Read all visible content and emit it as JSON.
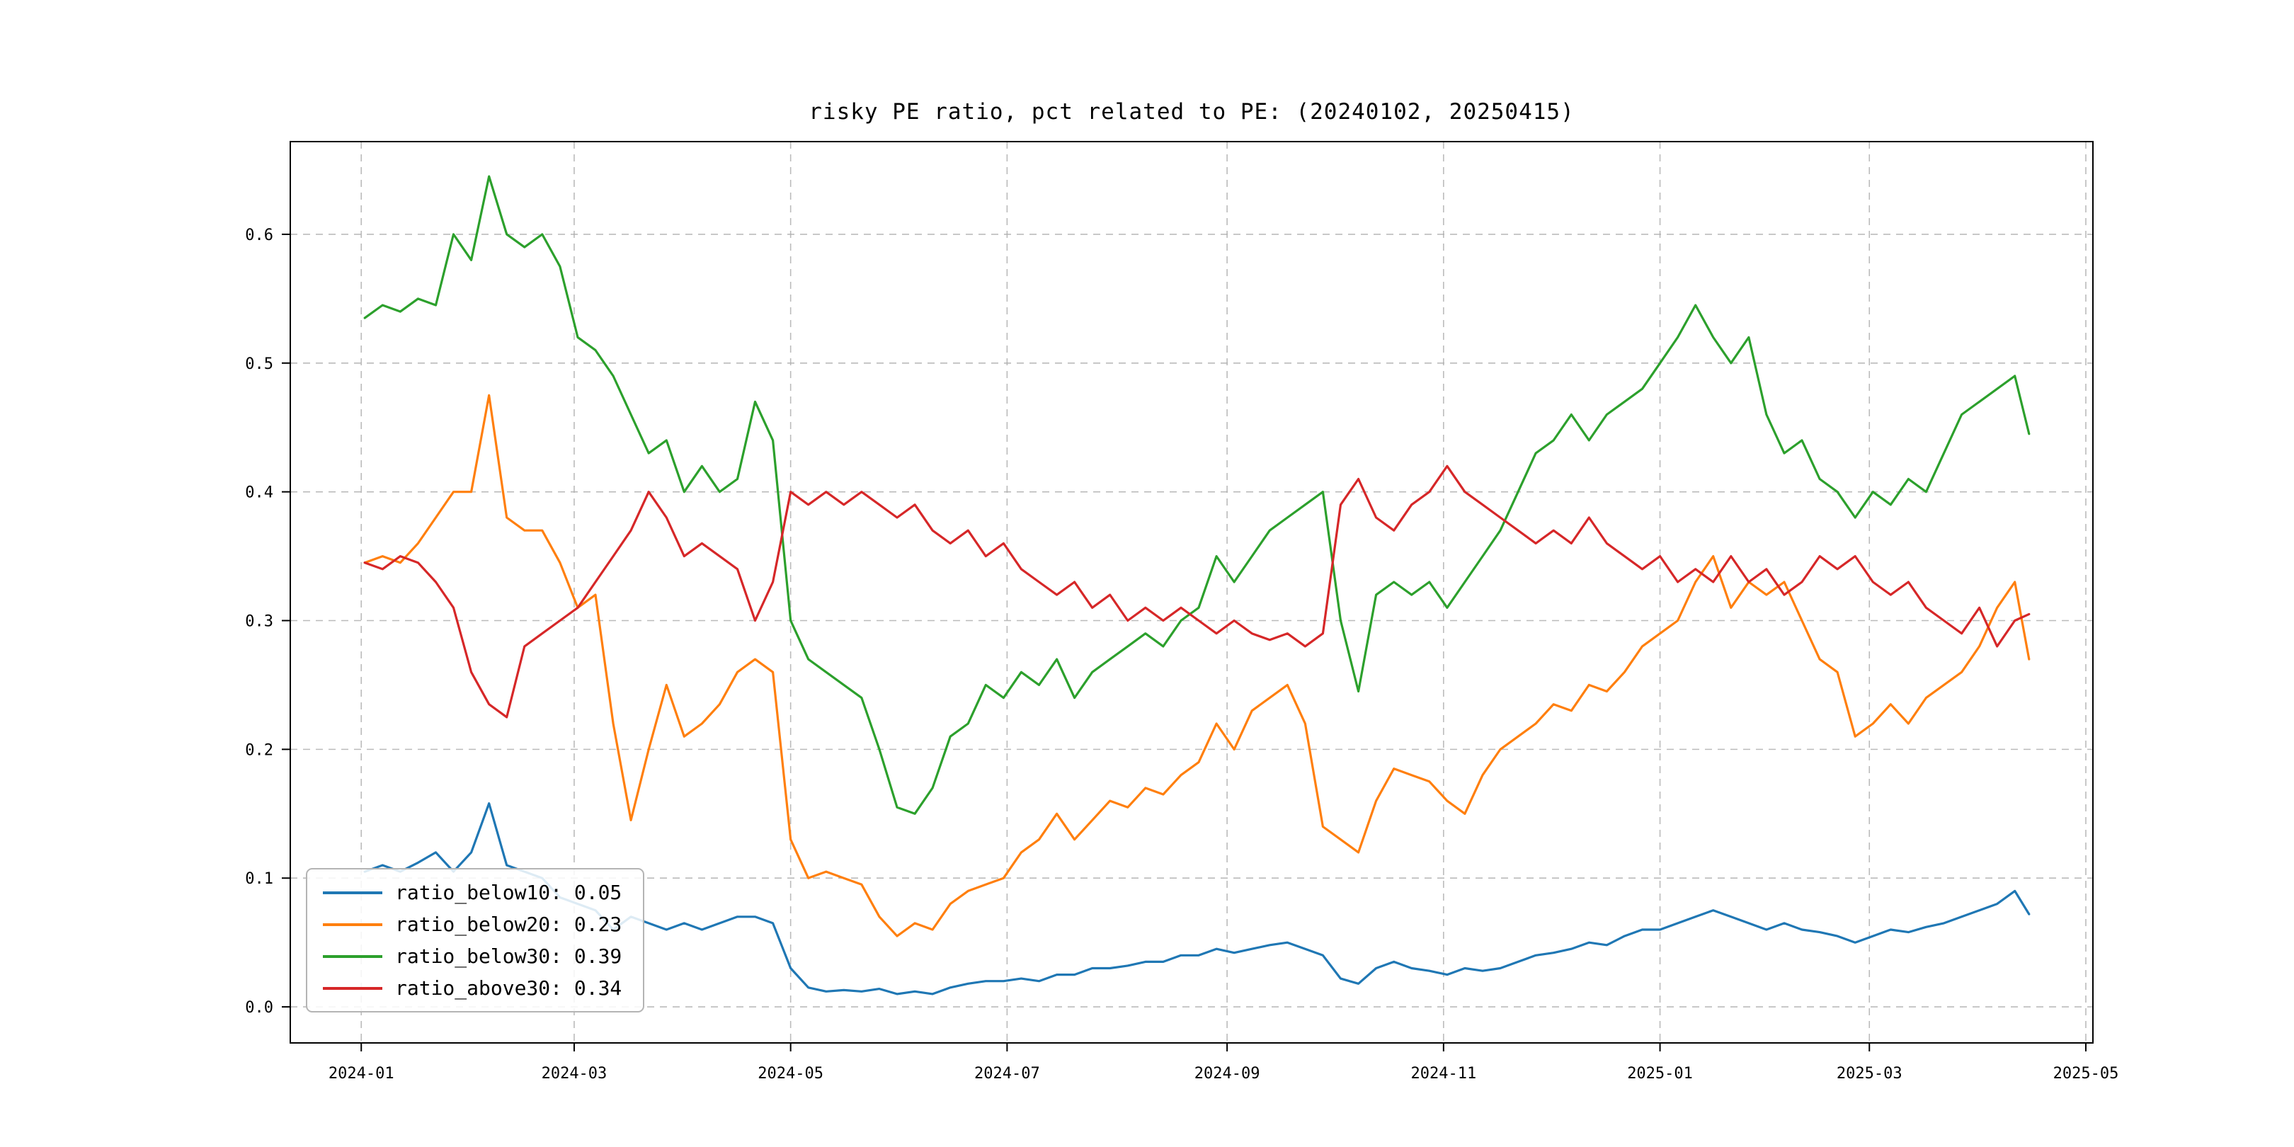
{
  "chart_data": {
    "type": "line",
    "title": "risky PE ratio, pct related to PE: (20240102, 20250415)",
    "xlabel": "",
    "ylabel": "",
    "grid": true,
    "grid_style": "dashed",
    "legend_position": "lower left",
    "xlim": [
      "2023-12-12",
      "2025-05-03"
    ],
    "ylim": [
      -0.028,
      0.672
    ],
    "x_ticks": [
      "2024-01",
      "2024-03",
      "2024-05",
      "2024-07",
      "2024-09",
      "2024-11",
      "2025-01",
      "2025-03",
      "2025-05"
    ],
    "y_ticks": [
      0.0,
      0.1,
      0.2,
      0.3,
      0.4,
      0.5,
      0.6
    ],
    "x": [
      "2024-01-02",
      "2024-01-07",
      "2024-01-12",
      "2024-01-17",
      "2024-01-22",
      "2024-01-27",
      "2024-02-01",
      "2024-02-06",
      "2024-02-11",
      "2024-02-16",
      "2024-02-21",
      "2024-02-26",
      "2024-03-02",
      "2024-03-07",
      "2024-03-12",
      "2024-03-17",
      "2024-03-22",
      "2024-03-27",
      "2024-04-01",
      "2024-04-06",
      "2024-04-11",
      "2024-04-16",
      "2024-04-21",
      "2024-04-26",
      "2024-05-01",
      "2024-05-06",
      "2024-05-11",
      "2024-05-16",
      "2024-05-21",
      "2024-05-26",
      "2024-05-31",
      "2024-06-05",
      "2024-06-10",
      "2024-06-15",
      "2024-06-20",
      "2024-06-25",
      "2024-06-30",
      "2024-07-05",
      "2024-07-10",
      "2024-07-15",
      "2024-07-20",
      "2024-07-25",
      "2024-07-30",
      "2024-08-04",
      "2024-08-09",
      "2024-08-14",
      "2024-08-19",
      "2024-08-24",
      "2024-08-29",
      "2024-09-03",
      "2024-09-08",
      "2024-09-13",
      "2024-09-18",
      "2024-09-23",
      "2024-09-28",
      "2024-10-03",
      "2024-10-08",
      "2024-10-13",
      "2024-10-18",
      "2024-10-23",
      "2024-10-28",
      "2024-11-02",
      "2024-11-07",
      "2024-11-12",
      "2024-11-17",
      "2024-11-22",
      "2024-11-27",
      "2024-12-02",
      "2024-12-07",
      "2024-12-12",
      "2024-12-17",
      "2024-12-22",
      "2024-12-27",
      "2025-01-01",
      "2025-01-06",
      "2025-01-11",
      "2025-01-16",
      "2025-01-21",
      "2025-01-26",
      "2025-01-31",
      "2025-02-05",
      "2025-02-10",
      "2025-02-15",
      "2025-02-20",
      "2025-02-25",
      "2025-03-02",
      "2025-03-07",
      "2025-03-12",
      "2025-03-17",
      "2025-03-22",
      "2025-03-27",
      "2025-04-01",
      "2025-04-06",
      "2025-04-11",
      "2025-04-15"
    ],
    "series": [
      {
        "name": "ratio_below10",
        "legend_label": "ratio_below10: 0.05",
        "color": "#1f77b4",
        "values": [
          0.105,
          0.11,
          0.105,
          0.112,
          0.12,
          0.105,
          0.12,
          0.158,
          0.11,
          0.105,
          0.1,
          0.085,
          0.08,
          0.075,
          0.06,
          0.07,
          0.065,
          0.06,
          0.065,
          0.06,
          0.065,
          0.07,
          0.07,
          0.065,
          0.03,
          0.015,
          0.012,
          0.013,
          0.012,
          0.014,
          0.01,
          0.012,
          0.01,
          0.015,
          0.018,
          0.02,
          0.02,
          0.022,
          0.02,
          0.025,
          0.025,
          0.03,
          0.03,
          0.032,
          0.035,
          0.035,
          0.04,
          0.04,
          0.045,
          0.042,
          0.045,
          0.048,
          0.05,
          0.045,
          0.04,
          0.022,
          0.018,
          0.03,
          0.035,
          0.03,
          0.028,
          0.025,
          0.03,
          0.028,
          0.03,
          0.035,
          0.04,
          0.042,
          0.045,
          0.05,
          0.048,
          0.055,
          0.06,
          0.06,
          0.065,
          0.07,
          0.075,
          0.07,
          0.065,
          0.06,
          0.065,
          0.06,
          0.058,
          0.055,
          0.05,
          0.055,
          0.06,
          0.058,
          0.062,
          0.065,
          0.07,
          0.075,
          0.08,
          0.09,
          0.072
        ]
      },
      {
        "name": "ratio_below20",
        "legend_label": "ratio_below20: 0.23",
        "color": "#ff7f0e",
        "values": [
          0.345,
          0.35,
          0.345,
          0.36,
          0.38,
          0.4,
          0.4,
          0.475,
          0.38,
          0.37,
          0.37,
          0.345,
          0.31,
          0.32,
          0.22,
          0.145,
          0.2,
          0.25,
          0.21,
          0.22,
          0.235,
          0.26,
          0.27,
          0.26,
          0.13,
          0.1,
          0.105,
          0.1,
          0.095,
          0.07,
          0.055,
          0.065,
          0.06,
          0.08,
          0.09,
          0.095,
          0.1,
          0.12,
          0.13,
          0.15,
          0.13,
          0.145,
          0.16,
          0.155,
          0.17,
          0.165,
          0.18,
          0.19,
          0.22,
          0.2,
          0.23,
          0.24,
          0.25,
          0.22,
          0.14,
          0.13,
          0.12,
          0.16,
          0.185,
          0.18,
          0.175,
          0.16,
          0.15,
          0.18,
          0.2,
          0.21,
          0.22,
          0.235,
          0.23,
          0.25,
          0.245,
          0.26,
          0.28,
          0.29,
          0.3,
          0.33,
          0.35,
          0.31,
          0.33,
          0.32,
          0.33,
          0.3,
          0.27,
          0.26,
          0.21,
          0.22,
          0.235,
          0.22,
          0.24,
          0.25,
          0.26,
          0.28,
          0.31,
          0.33,
          0.27
        ]
      },
      {
        "name": "ratio_below30",
        "legend_label": "ratio_below30: 0.39",
        "color": "#2ca02c",
        "values": [
          0.535,
          0.545,
          0.54,
          0.55,
          0.545,
          0.6,
          0.58,
          0.645,
          0.6,
          0.59,
          0.6,
          0.575,
          0.52,
          0.51,
          0.49,
          0.46,
          0.43,
          0.44,
          0.4,
          0.42,
          0.4,
          0.41,
          0.47,
          0.44,
          0.3,
          0.27,
          0.26,
          0.25,
          0.24,
          0.2,
          0.155,
          0.15,
          0.17,
          0.21,
          0.22,
          0.25,
          0.24,
          0.26,
          0.25,
          0.27,
          0.24,
          0.26,
          0.27,
          0.28,
          0.29,
          0.28,
          0.3,
          0.31,
          0.35,
          0.33,
          0.35,
          0.37,
          0.38,
          0.39,
          0.4,
          0.3,
          0.245,
          0.32,
          0.33,
          0.32,
          0.33,
          0.31,
          0.33,
          0.35,
          0.37,
          0.4,
          0.43,
          0.44,
          0.46,
          0.44,
          0.46,
          0.47,
          0.48,
          0.5,
          0.52,
          0.545,
          0.52,
          0.5,
          0.52,
          0.46,
          0.43,
          0.44,
          0.41,
          0.4,
          0.38,
          0.4,
          0.39,
          0.41,
          0.4,
          0.43,
          0.46,
          0.47,
          0.48,
          0.49,
          0.445
        ]
      },
      {
        "name": "ratio_above30",
        "legend_label": "ratio_above30: 0.34",
        "color": "#d62728",
        "values": [
          0.345,
          0.34,
          0.35,
          0.345,
          0.33,
          0.31,
          0.26,
          0.235,
          0.225,
          0.28,
          0.29,
          0.3,
          0.31,
          0.33,
          0.35,
          0.37,
          0.4,
          0.38,
          0.35,
          0.36,
          0.35,
          0.34,
          0.3,
          0.33,
          0.4,
          0.39,
          0.4,
          0.39,
          0.4,
          0.39,
          0.38,
          0.39,
          0.37,
          0.36,
          0.37,
          0.35,
          0.36,
          0.34,
          0.33,
          0.32,
          0.33,
          0.31,
          0.32,
          0.3,
          0.31,
          0.3,
          0.31,
          0.3,
          0.29,
          0.3,
          0.29,
          0.285,
          0.29,
          0.28,
          0.29,
          0.39,
          0.41,
          0.38,
          0.37,
          0.39,
          0.4,
          0.42,
          0.4,
          0.39,
          0.38,
          0.37,
          0.36,
          0.37,
          0.36,
          0.38,
          0.36,
          0.35,
          0.34,
          0.35,
          0.33,
          0.34,
          0.33,
          0.35,
          0.33,
          0.34,
          0.32,
          0.33,
          0.35,
          0.34,
          0.35,
          0.33,
          0.32,
          0.33,
          0.31,
          0.3,
          0.29,
          0.31,
          0.28,
          0.3,
          0.305
        ]
      }
    ]
  }
}
